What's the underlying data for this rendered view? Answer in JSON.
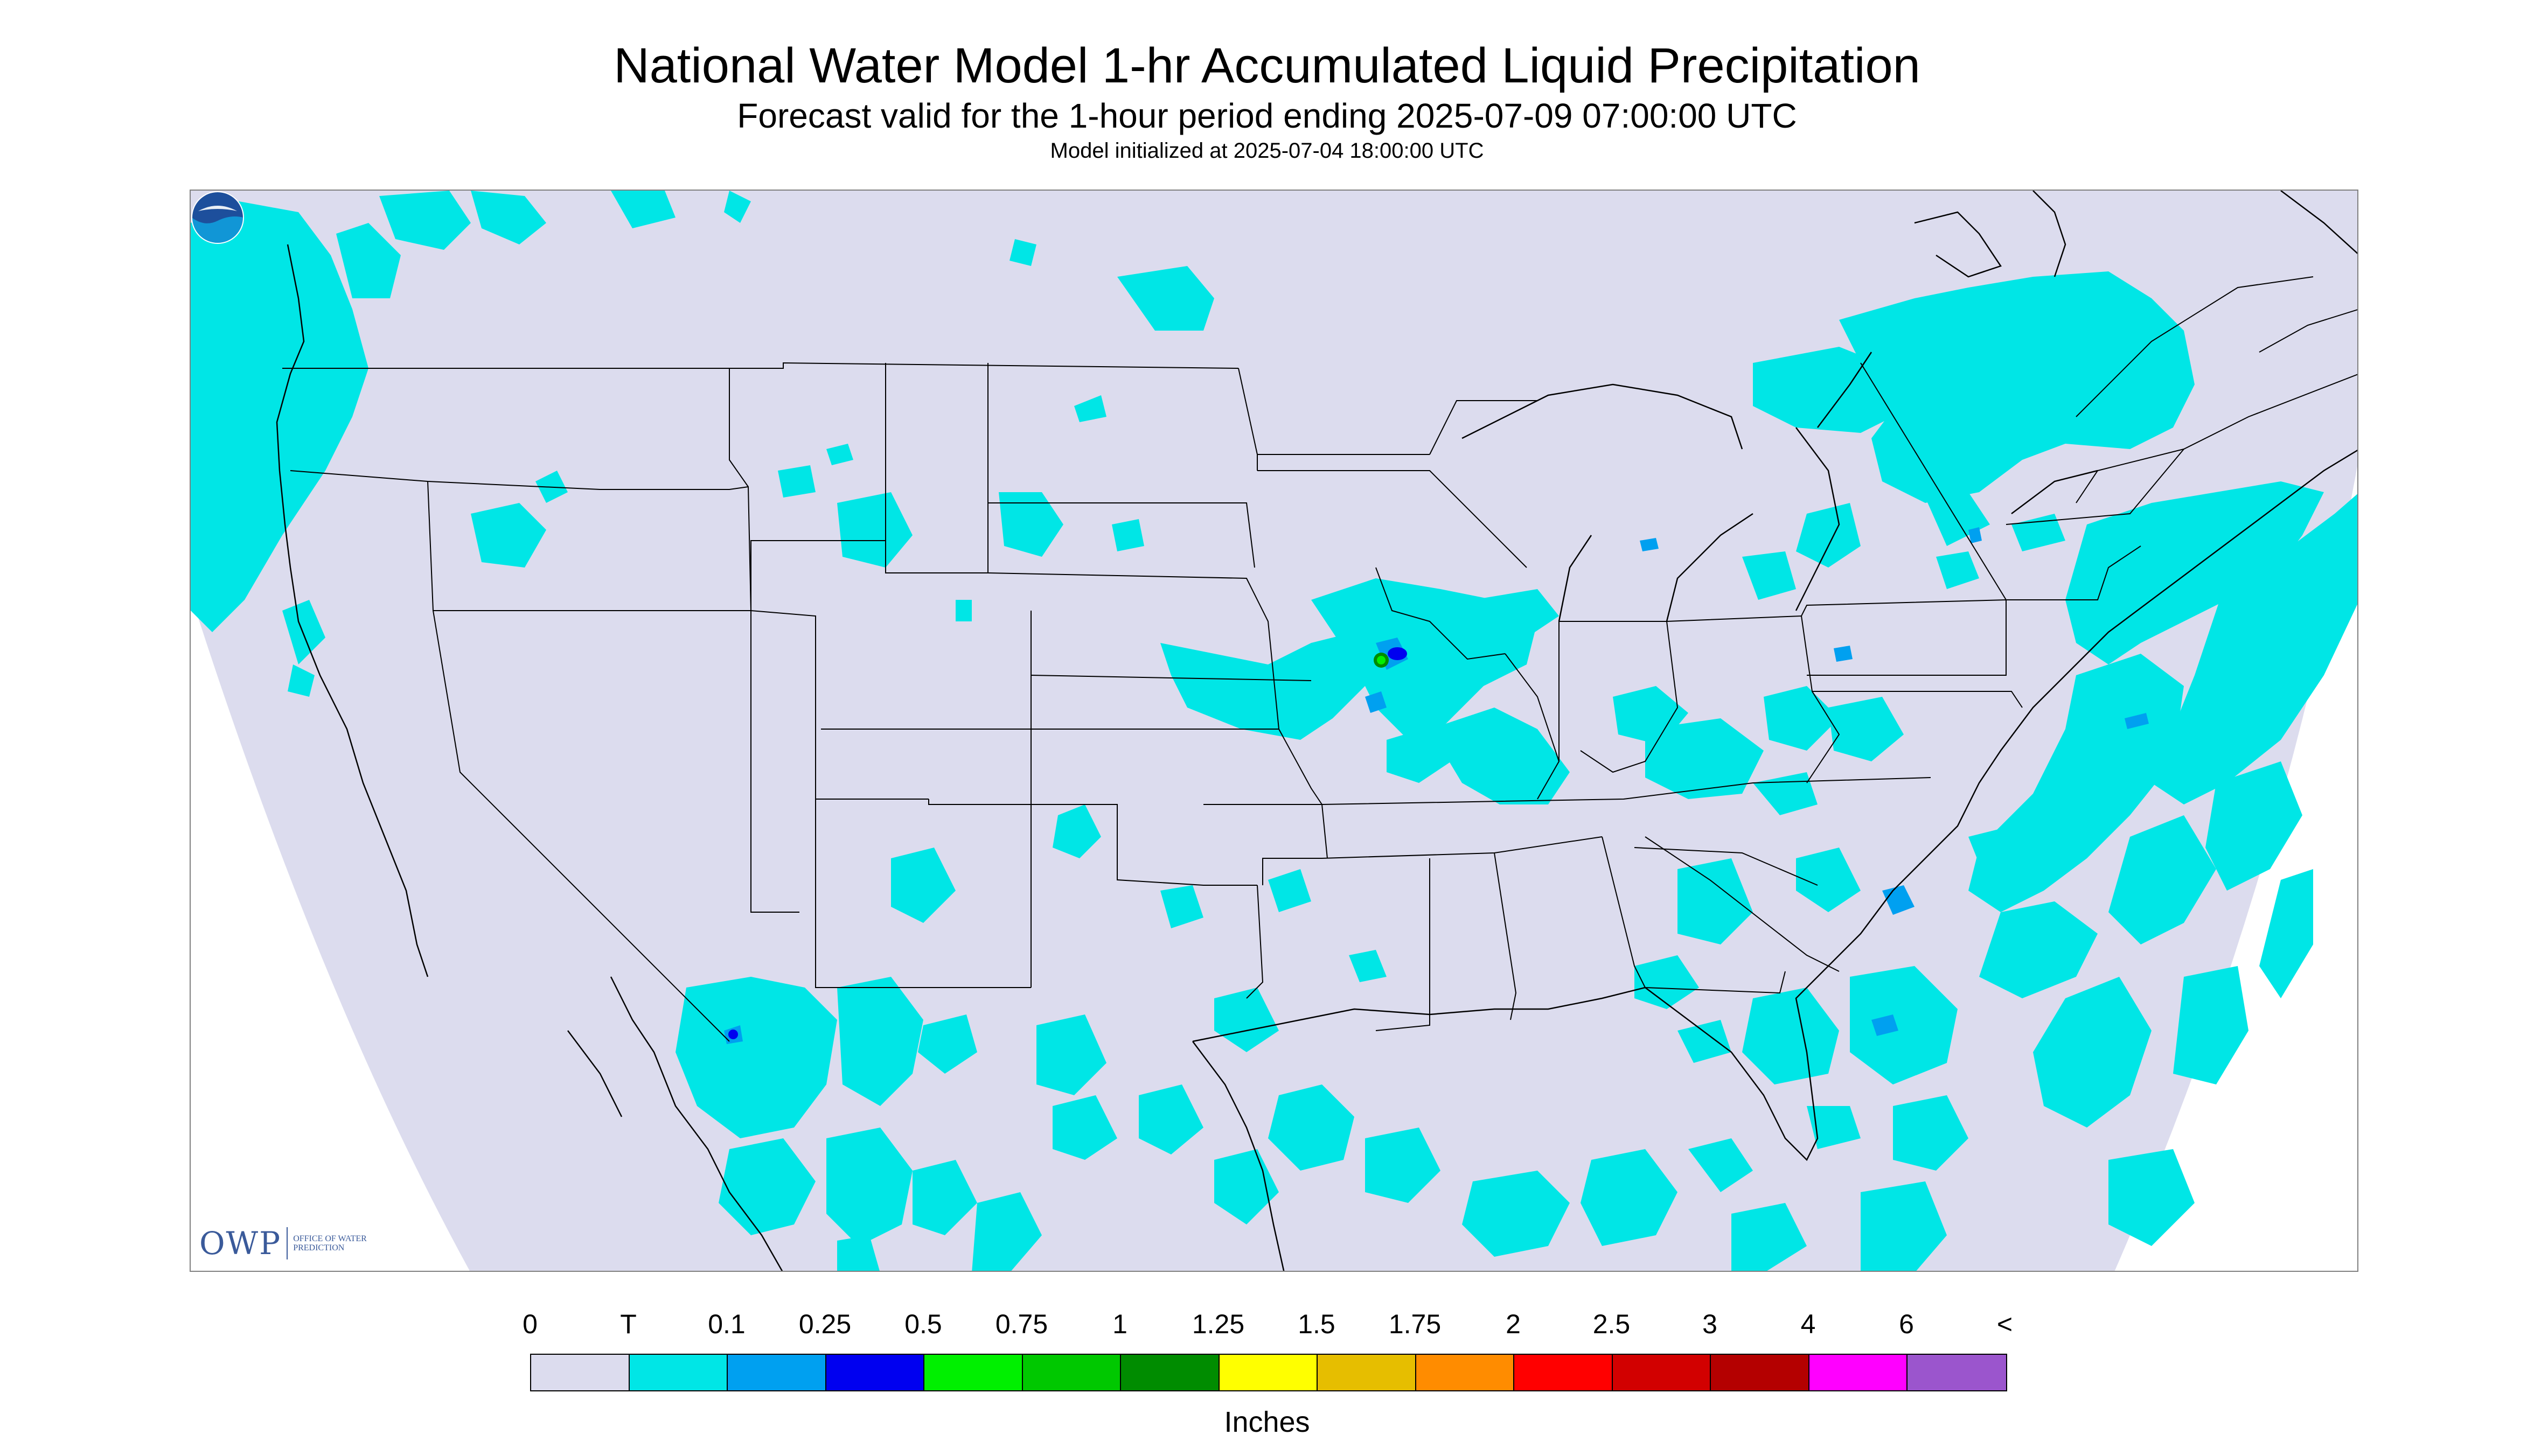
{
  "header": {
    "title": "National Water Model 1-hr Accumulated Liquid Precipitation",
    "subtitle": "Forecast valid for the 1-hour period ending 2025-07-09 07:00:00 UTC",
    "model_init": "Model initialized at 2025-07-04 18:00:00 UTC"
  },
  "logos": {
    "owp_mark": "OWP",
    "owp_text": "OFFICE OF WATER PREDICTION",
    "noaa": "NOAA"
  },
  "legend": {
    "labels": [
      "0",
      "T",
      "0.1",
      "0.25",
      "0.5",
      "0.75",
      "1",
      "1.25",
      "1.5",
      "1.75",
      "2",
      "2.5",
      "3",
      "4",
      "6",
      "<"
    ],
    "colors": [
      "#dcdcee",
      "#00e6e6",
      "#00a0f0",
      "#0000f0",
      "#00f000",
      "#00c800",
      "#008c00",
      "#ffff00",
      "#e6be00",
      "#ff8c00",
      "#ff0000",
      "#d20000",
      "#b40000",
      "#ff00ff",
      "#9b55cd"
    ],
    "units": "Inches"
  },
  "colors": {
    "no_precip": "#dcdcee",
    "trace": "#00e6e6",
    "background": "#ffffff",
    "boundaries": "#000000"
  }
}
